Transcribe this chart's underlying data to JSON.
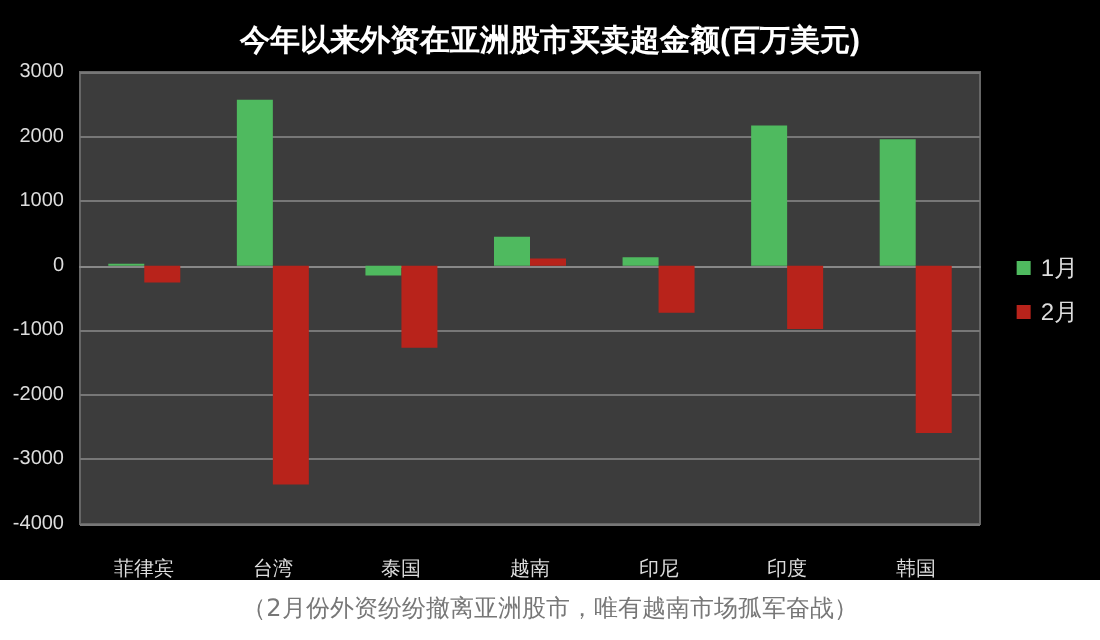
{
  "chart_data": {
    "type": "bar",
    "title": "今年以来外资在亚洲股市买卖超金额(百万美元)",
    "categories": [
      "菲律宾",
      "台湾",
      "泰国",
      "越南",
      "印尼",
      "印度",
      "韩国"
    ],
    "series": [
      {
        "name": "1月",
        "color": "#4fba5f",
        "values": [
          30,
          2570,
          -150,
          450,
          130,
          2170,
          1960
        ]
      },
      {
        "name": "2月",
        "color": "#b8231b",
        "values": [
          -260,
          -3390,
          -1270,
          110,
          -730,
          -980,
          -2590
        ]
      }
    ],
    "ylim": [
      -4000,
      3000
    ],
    "yticks": [
      -4000,
      -3000,
      -2000,
      -1000,
      0,
      1000,
      2000,
      3000
    ],
    "grid": "y",
    "legend": "right",
    "annotations": [
      "（2月份外资纷纷撤离亚洲股市，唯有越南市场孤军奋战）"
    ]
  }
}
